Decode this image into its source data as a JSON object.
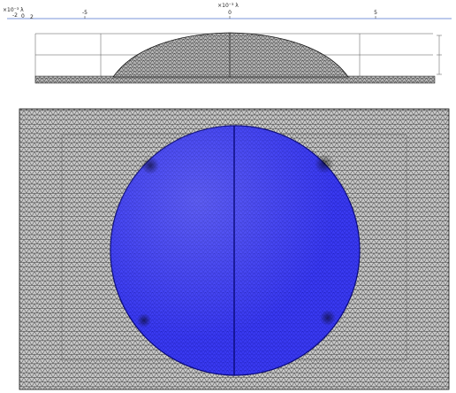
{
  "side_view": {
    "top_axis": {
      "scale_label": "×10⁻³ λ",
      "tick_labels": [
        "-5",
        "0",
        "5"
      ]
    },
    "left_axis": {
      "scale_label": "×10⁻³ λ",
      "tick_labels": [
        "-2",
        "0",
        "2"
      ]
    }
  },
  "colors": {
    "mesh_background": "#c9c9c9",
    "mesh_line": "#222222",
    "disk_fill": "#3a3af2",
    "disk_edge": "#0a0a7a",
    "axis_blue": "#7a96d8"
  }
}
